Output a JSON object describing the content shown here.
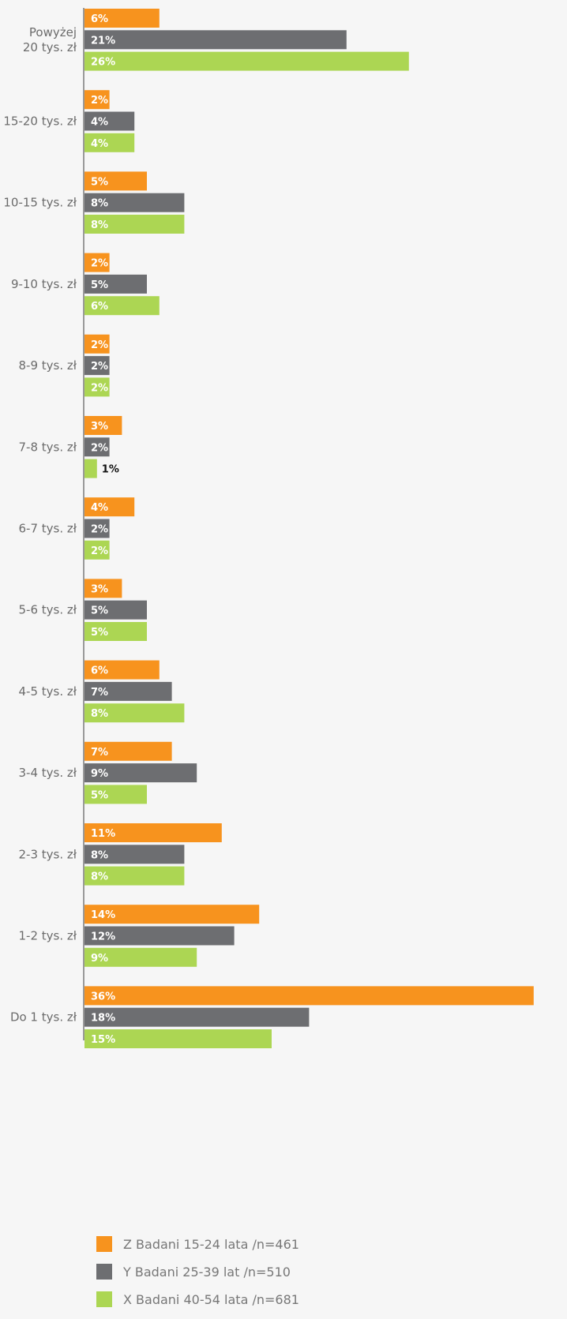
{
  "chart_data": {
    "type": "bar",
    "orientation": "horizontal",
    "categories": [
      "Powyżej\n20 tys. zł",
      "15-20 tys. zł",
      "10-15 tys. zł",
      "9-10 tys. zł",
      "8-9 tys. zł",
      "7-8 tys. zł",
      "6-7 tys. zł",
      "5-6 tys. zł",
      "4-5 tys. zł",
      "3-4 tys. zł",
      "2-3 tys. zł",
      "1-2 tys. zł",
      "Do 1 tys. zł"
    ],
    "series": [
      {
        "name": "Z Badani 15-24 lata /n=461",
        "color": "#f7931e",
        "values": [
          6,
          2,
          5,
          2,
          2,
          3,
          4,
          3,
          6,
          7,
          11,
          14,
          36
        ],
        "display_values": [
          6,
          2,
          5,
          2,
          2,
          3,
          4,
          3,
          6,
          7,
          11,
          14,
          36
        ]
      },
      {
        "name": "Y Badani 25-39 lat /n=510",
        "color": "#6d6e71",
        "values": [
          21,
          4,
          8,
          5,
          2,
          2,
          2,
          5,
          7,
          9,
          8,
          12,
          18
        ],
        "display_values": [
          21,
          4,
          8,
          5,
          2,
          2,
          2,
          5,
          7,
          9,
          8,
          12,
          18
        ]
      },
      {
        "name": "X Badani 40-54 lata /n=681",
        "color": "#acd653",
        "values": [
          26,
          4,
          8,
          6,
          2,
          1,
          2,
          5,
          8,
          5,
          8,
          9,
          15
        ],
        "display_values": [
          26,
          4,
          8,
          6,
          2,
          1,
          2,
          5,
          8,
          5,
          8,
          9,
          15
        ]
      }
    ],
    "value_suffix": "%",
    "xlim": [
      0,
      36
    ],
    "grid": false,
    "legend_position": "bottom"
  }
}
